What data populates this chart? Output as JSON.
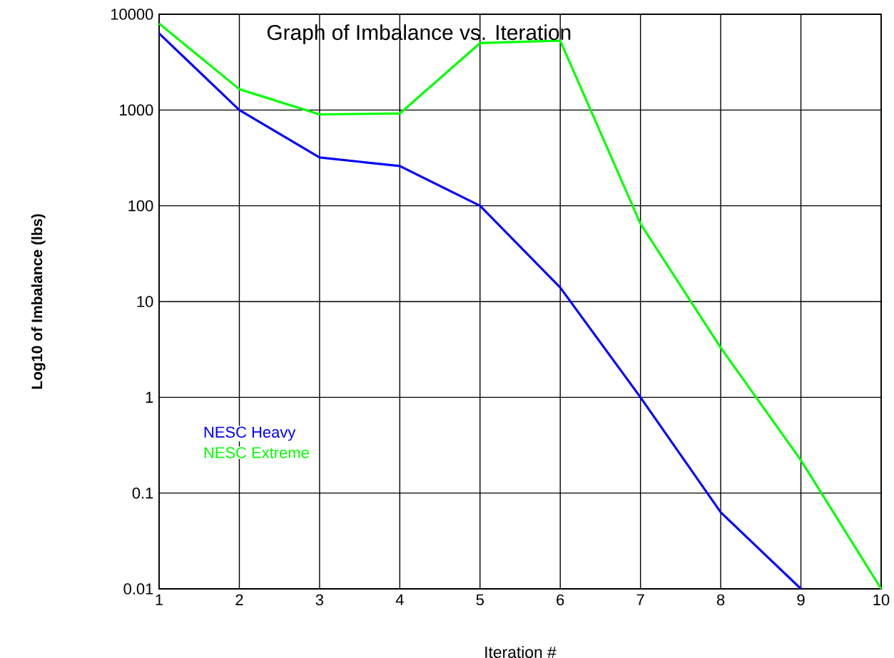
{
  "chart_data": {
    "type": "line",
    "title": "Graph of Imbalance vs. Iteration",
    "xlabel": "Iteration #",
    "ylabel": "Log10 of Imbalance (lbs)",
    "x": [
      1,
      2,
      3,
      4,
      5,
      6,
      7,
      8,
      9,
      10
    ],
    "series": [
      {
        "name": "NESC Heavy",
        "color": "#0000ff",
        "values": [
          6300,
          1000,
          320,
          260,
          100,
          14,
          1,
          0.063,
          0.01,
          null
        ]
      },
      {
        "name": "NESC Extreme",
        "color": "#00ff00",
        "values": [
          8000,
          1650,
          900,
          920,
          5000,
          5300,
          65,
          3.3,
          0.22,
          0.01
        ]
      }
    ],
    "xlim": [
      1,
      10
    ],
    "xticks": [
      1,
      2,
      3,
      4,
      5,
      6,
      7,
      8,
      9,
      10
    ],
    "ylim": [
      0.01,
      10000
    ],
    "yticks": [
      0.01,
      0.1,
      1,
      10,
      100,
      1000,
      10000
    ],
    "log": "y",
    "grid": true,
    "legend": "bottom left",
    "marker": "none",
    "line_style": "solid"
  }
}
